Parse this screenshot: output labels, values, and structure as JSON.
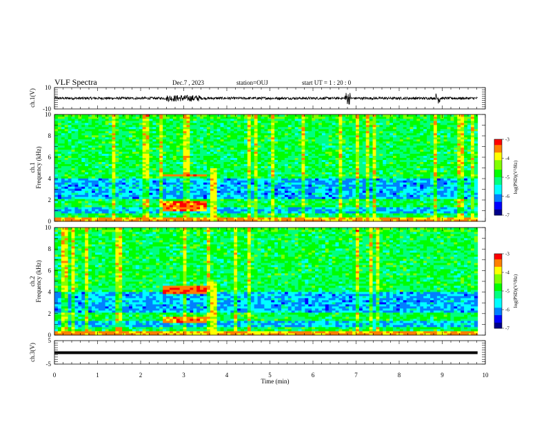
{
  "header": {
    "title": "VLF Spectra",
    "date": "Dec.7 , 2023",
    "station": "station=OUJ",
    "start_ut": "start  UT =  1 : 20 : 0"
  },
  "chart_data": [
    {
      "type": "line",
      "id": "ch1-waveform",
      "ylabel": "ch.1(V)",
      "ylim": [
        -10,
        10
      ],
      "yticks": [
        "10",
        "-10"
      ],
      "xlim": [
        0,
        10
      ],
      "x_extent": [
        0,
        9.82
      ],
      "baseline": 0,
      "description_level": "noise around 0 V with bursts near 3, 6.8, 8.9 min"
    },
    {
      "type": "heatmap",
      "id": "ch1-spectrogram",
      "ylabel": "Frequency (kHz)",
      "channel_label": "ch.1",
      "ylim": [
        0,
        10
      ],
      "yticks": [
        "0",
        "2",
        "4",
        "6",
        "8",
        "10"
      ],
      "xlim": [
        0,
        10
      ],
      "x_extent": [
        0,
        9.82
      ],
      "colorbar": {
        "label": "log(PSD)(V²/Hz)",
        "range": [
          -7,
          -3
        ],
        "ticks": [
          "-3",
          "-4",
          "-5",
          "-6",
          "-7"
        ]
      },
      "burst": {
        "t_start": 2.5,
        "t_end": 3.5,
        "band_low": [
          1,
          2
        ],
        "band_high": [
          4.2,
          4.5
        ]
      }
    },
    {
      "type": "heatmap",
      "id": "ch2-spectrogram",
      "ylabel": "Frequency (kHz)",
      "channel_label": "ch.2",
      "ylim": [
        0,
        10
      ],
      "yticks": [
        "0",
        "2",
        "4",
        "6",
        "8",
        "10"
      ],
      "xlim": [
        0,
        10
      ],
      "x_extent": [
        0,
        9.82
      ],
      "colorbar": {
        "label": "log(PSD)(V²/Hz)",
        "range": [
          -7,
          -3
        ],
        "ticks": [
          "-3",
          "-4",
          "-5",
          "-6",
          "-7"
        ]
      },
      "burst": {
        "t_start": 2.5,
        "t_end": 3.5,
        "band_low": [
          1.2,
          1.8
        ],
        "band_high": [
          3.8,
          4.7
        ]
      }
    },
    {
      "type": "line",
      "id": "ch3-waveform",
      "ylabel": "ch.3(V)",
      "ylim": [
        -5,
        5
      ],
      "yticks": [
        "5",
        "-5"
      ],
      "xlim": [
        0,
        10
      ],
      "x_extent": [
        0,
        9.82
      ],
      "baseline": 0
    }
  ],
  "xaxis": {
    "label": "Time (min)",
    "ticks": [
      "0",
      "1",
      "2",
      "3",
      "4",
      "5",
      "6",
      "7",
      "8",
      "9",
      "10"
    ]
  },
  "colormap": [
    "#00008b",
    "#0000ff",
    "#0080ff",
    "#00ffff",
    "#00ff80",
    "#00ff00",
    "#80ff00",
    "#ffff00",
    "#ff8000",
    "#ff0000",
    "#ffffff"
  ]
}
